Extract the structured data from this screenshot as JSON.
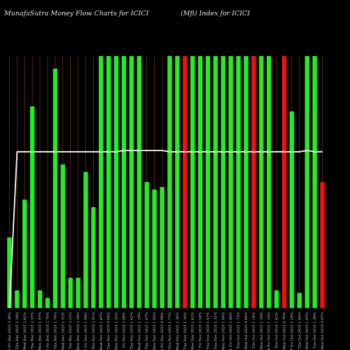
{
  "title": "MunafaSutra  Money Flow  Charts for ICICI",
  "subtitle": "(Mfi) Index for ICICI",
  "chart_data": {
    "type": "bar",
    "title": "MunafaSutra  Money Flow  Charts for ICICI",
    "subtitle": "(Mfi) Index for ICICI",
    "xlabel": "",
    "ylabel": "",
    "ylim": [
      0,
      100
    ],
    "grid": true,
    "grid_color": "#8a4a00",
    "background_color": "#000000",
    "up_color": "#22ee22",
    "down_color": "#ee1111",
    "line_color": "#ffffff",
    "categories": [
      "12 Fri Dec 2025 3.38%",
      "11 Thu Dec 2025 1.18%",
      "10 Wed Dec 2025 2.81%",
      "09 Tue Dec 2025 2.15%",
      "08 Mon Dec 2025 1.97%",
      "05 Fri Dec 2025 2.76%",
      "04 Thu Dec 2025 1.74%",
      "03 Wed Dec 2025 1.52%",
      "02 Tue Dec 2025 2.11%",
      "01 Mon Dec 2025 2.34%",
      "28 Fri Nov 2025 1.98%",
      "27 Thu Nov 2025 2.41%",
      "26 Wed Nov 2025 1.87%",
      "25 Tue Nov 2025 0.94%",
      "24 Mon Nov 2025 1.55%",
      "21 Fri Nov 2025 2.08%",
      "20 Thu Nov 2025 1.62%",
      "19 Wed Nov 2025 1.29%",
      "18 Tue Nov 2025 1.07%",
      "17 Mon Nov 2025 1.43%",
      "14 Fri Nov 2025 0.98%",
      "13 Thu Nov 2025 1.77%",
      "12 Wed Nov 2025 1.36%",
      "11 Tue Nov 2025 1.19%",
      "10 Mon Nov 2025 1.62%",
      "07 Fri Nov 2025 2.54%",
      "06 Thu Nov 2025 1.47%",
      "04 Tue Nov 2025 1.31%",
      "03 Mon Nov 2025 1.09%",
      "31 Fri Oct 2025 1.88%",
      "30 Thu Oct 2025 1.73%",
      "29 Wed Oct 2025 0.89%",
      "28 Tue Oct 2025 1.24%",
      "27 Mon Oct 2025 1.56%",
      "24 Fri Oct 2025 1.14%",
      "23 Thu Oct 2025 1.82%",
      "20 Mon Oct 2025 0.76%",
      "17 Fri Oct 2025 1.28%",
      "16 Thu Oct 2025 1.66%",
      "15 Wed Oct 2025 1.05%",
      "14 Tue Oct 2025 1.39%",
      "13 Mon Oct 2025 0.97%"
    ],
    "values": [
      28,
      7,
      43,
      80,
      7,
      4,
      95,
      57,
      12,
      12,
      54,
      40,
      100,
      100,
      100,
      100,
      100,
      100,
      50,
      47,
      48,
      100,
      100,
      100,
      100,
      100,
      100,
      100,
      100,
      100,
      100,
      100,
      100,
      100,
      100,
      7,
      100,
      78,
      6,
      100,
      100,
      50
    ],
    "directions": [
      "up",
      "up",
      "up",
      "up",
      "up",
      "up",
      "up",
      "up",
      "up",
      "up",
      "up",
      "up",
      "up",
      "up",
      "up",
      "up",
      "up",
      "up",
      "up",
      "up",
      "up",
      "up",
      "up",
      "down",
      "up",
      "up",
      "up",
      "up",
      "up",
      "up",
      "up",
      "up",
      "down",
      "up",
      "up",
      "up",
      "down",
      "up",
      "up",
      "up",
      "up",
      "down"
    ],
    "line_values": [
      0,
      62,
      62,
      62,
      62,
      62,
      62,
      62,
      62,
      62,
      62,
      62,
      62,
      62,
      62,
      62.5,
      62.5,
      62.5,
      62.5,
      62.5,
      62.5,
      62,
      62,
      62,
      62,
      62,
      62,
      62,
      62,
      62,
      62,
      62,
      62,
      62,
      62,
      62,
      62,
      62,
      62,
      62.5,
      62,
      62
    ]
  }
}
